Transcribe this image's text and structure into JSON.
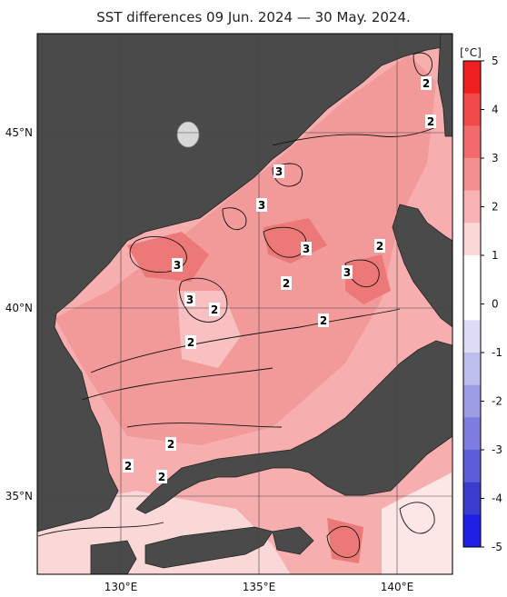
{
  "title": "SST differences 09 Jun. 2024 — 30 May. 2024.",
  "lat_labels": [
    "45°N",
    "40°N",
    "35°N"
  ],
  "lon_labels": [
    "130°E",
    "135°E",
    "140°E"
  ],
  "colorbar": {
    "unit": "[°C]",
    "ticks": [
      "5",
      "4",
      "3",
      "2",
      "1",
      "0",
      "-1",
      "-2",
      "-3",
      "-4",
      "-5"
    ],
    "colors": [
      "#ee1f1f",
      "#f04848",
      "#f26b6b",
      "#f59090",
      "#f8b4b4",
      "#fbd8d8",
      "#ffffff",
      "#ffffff",
      "#dcdcf5",
      "#bdbdee",
      "#9d9de6",
      "#7d7ddf",
      "#5d5dd7",
      "#3c3cd0",
      "#1f1fe6"
    ]
  },
  "contour_labels": [
    "2",
    "2",
    "3",
    "3",
    "3",
    "2",
    "3",
    "3",
    "2",
    "3",
    "2",
    "2",
    "2",
    "2",
    "2",
    "2"
  ],
  "colors": {
    "land": "#4a4a4a",
    "sea_dark": "#f08c8c",
    "sea_mid": "#f6aeae",
    "sea_light": "#fbd0d0",
    "grid": "#444444"
  }
}
